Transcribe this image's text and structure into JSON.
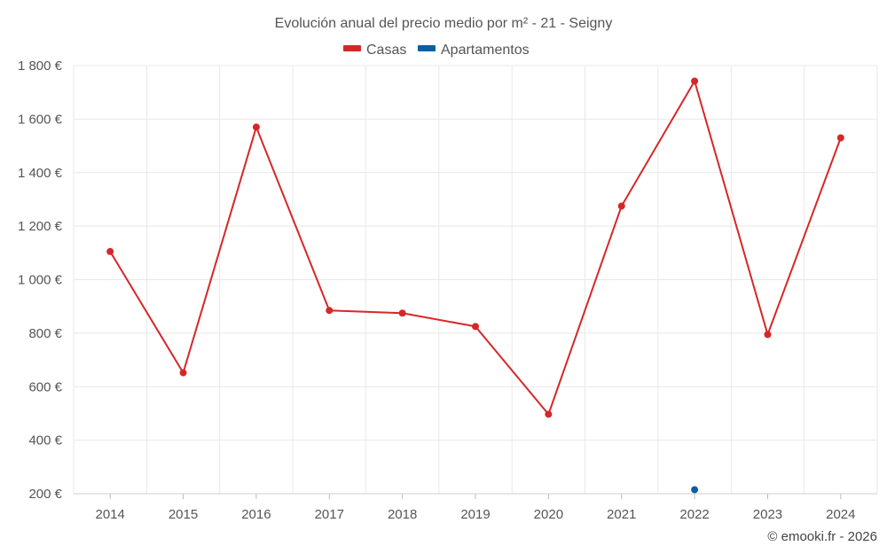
{
  "chart_data": {
    "type": "line",
    "title": "Evolución anual del precio medio por m² - 21 - Seigny",
    "categories": [
      "2014",
      "2015",
      "2016",
      "2017",
      "2018",
      "2019",
      "2020",
      "2021",
      "2022",
      "2023",
      "2024"
    ],
    "series": [
      {
        "name": "Casas",
        "color": "#d62728",
        "values": [
          1105,
          652,
          1570,
          885,
          875,
          825,
          497,
          1275,
          1742,
          795,
          1530
        ]
      },
      {
        "name": "Apartamentos",
        "color": "#0b5fa5",
        "values": [
          null,
          null,
          null,
          null,
          null,
          null,
          null,
          null,
          215,
          null,
          null
        ]
      }
    ],
    "ylim": [
      200,
      1800
    ],
    "yticks": [
      200,
      400,
      600,
      800,
      1000,
      1200,
      1400,
      1600,
      1800
    ],
    "ytick_labels": [
      "200 €",
      "400 €",
      "600 €",
      "800 €",
      "1 000 €",
      "1 200 €",
      "1 400 €",
      "1 600 €",
      "1 800 €"
    ],
    "xlabel": "",
    "ylabel": "",
    "legend_position": "top-center",
    "grid": true,
    "credit": "© emooki.fr - 2026"
  }
}
